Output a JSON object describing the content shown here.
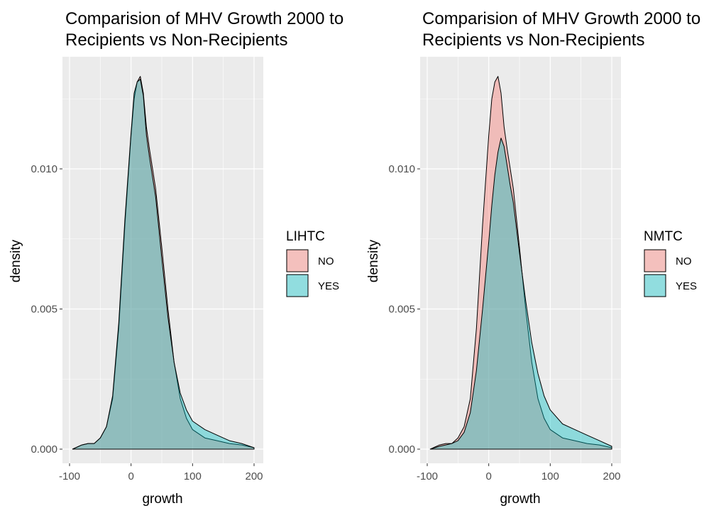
{
  "chart_data": [
    {
      "type": "area",
      "title": "Comparision of MHV Growth 2000 to",
      "subtitle": "Recipients vs Non-Recipients",
      "xlabel": "growth",
      "ylabel": "density",
      "xlim": [
        -100,
        200
      ],
      "ylim": [
        0,
        0.0135
      ],
      "x_ticks": [
        -100,
        0,
        100,
        200
      ],
      "y_ticks": [
        0.0,
        0.005,
        0.01
      ],
      "y_tick_labels": [
        "0.000",
        "0.005",
        "0.010"
      ],
      "grid": true,
      "legend_title": "LIHTC",
      "legend_position": "right",
      "series": [
        {
          "name": "NO",
          "color": "#f8766d",
          "x": [
            -95,
            -80,
            -70,
            -60,
            -50,
            -40,
            -30,
            -20,
            -10,
            0,
            5,
            10,
            15,
            20,
            25,
            30,
            35,
            40,
            50,
            60,
            70,
            80,
            90,
            100,
            120,
            140,
            160,
            180,
            200
          ],
          "y": [
            0.0,
            0.00015,
            0.0002,
            0.0002,
            0.0004,
            0.0008,
            0.0018,
            0.0043,
            0.008,
            0.0112,
            0.0125,
            0.0131,
            0.0133,
            0.0127,
            0.0115,
            0.0107,
            0.01,
            0.0093,
            0.0072,
            0.005,
            0.0031,
            0.0018,
            0.0011,
            0.0007,
            0.0004,
            0.0003,
            0.0002,
            0.00015,
            5e-05
          ]
        },
        {
          "name": "YES",
          "color": "#00bfc4",
          "x": [
            -95,
            -80,
            -70,
            -60,
            -50,
            -40,
            -30,
            -20,
            -10,
            0,
            5,
            10,
            15,
            20,
            25,
            30,
            35,
            40,
            50,
            60,
            70,
            80,
            90,
            100,
            120,
            140,
            160,
            180,
            200
          ],
          "y": [
            0.0,
            0.00015,
            0.0002,
            0.0002,
            0.0004,
            0.0008,
            0.0019,
            0.0045,
            0.0082,
            0.0113,
            0.0127,
            0.0131,
            0.0132,
            0.0126,
            0.0112,
            0.0104,
            0.0097,
            0.009,
            0.0068,
            0.0047,
            0.0031,
            0.002,
            0.0014,
            0.001,
            0.0007,
            0.0005,
            0.0003,
            0.0002,
            5e-05
          ]
        }
      ]
    },
    {
      "type": "area",
      "title": "Comparision of MHV Growth 2000 to",
      "subtitle": "Recipients vs Non-Recipients",
      "xlabel": "growth",
      "ylabel": "density",
      "xlim": [
        -100,
        200
      ],
      "ylim": [
        0,
        0.0135
      ],
      "x_ticks": [
        -100,
        0,
        100,
        200
      ],
      "y_ticks": [
        0.0,
        0.005,
        0.01
      ],
      "y_tick_labels": [
        "0.000",
        "0.005",
        "0.010"
      ],
      "grid": true,
      "legend_title": "NMTC",
      "legend_position": "right",
      "series": [
        {
          "name": "NO",
          "color": "#f8766d",
          "x": [
            -95,
            -80,
            -70,
            -60,
            -50,
            -40,
            -30,
            -20,
            -10,
            0,
            5,
            10,
            15,
            20,
            25,
            30,
            35,
            40,
            50,
            60,
            70,
            80,
            90,
            100,
            120,
            140,
            160,
            180,
            200
          ],
          "y": [
            0.0,
            0.00015,
            0.0002,
            0.0002,
            0.0004,
            0.0008,
            0.0018,
            0.0043,
            0.008,
            0.0112,
            0.0125,
            0.0131,
            0.0133,
            0.0127,
            0.0115,
            0.0107,
            0.01,
            0.0093,
            0.0072,
            0.005,
            0.0031,
            0.0018,
            0.0011,
            0.0007,
            0.0004,
            0.0003,
            0.0002,
            0.00015,
            5e-05
          ]
        },
        {
          "name": "YES",
          "color": "#00bfc4",
          "x": [
            -95,
            -80,
            -70,
            -60,
            -50,
            -40,
            -30,
            -20,
            -10,
            0,
            5,
            10,
            15,
            20,
            25,
            30,
            35,
            40,
            50,
            60,
            70,
            80,
            90,
            100,
            120,
            140,
            160,
            180,
            200
          ],
          "y": [
            0.0,
            0.0001,
            0.00015,
            0.0002,
            0.0003,
            0.0006,
            0.0013,
            0.0028,
            0.005,
            0.0074,
            0.0087,
            0.0098,
            0.0106,
            0.0111,
            0.0108,
            0.0101,
            0.0094,
            0.0088,
            0.007,
            0.0053,
            0.0038,
            0.0027,
            0.0019,
            0.0014,
            0.0009,
            0.0007,
            0.0005,
            0.0003,
            0.0001
          ]
        }
      ]
    }
  ]
}
